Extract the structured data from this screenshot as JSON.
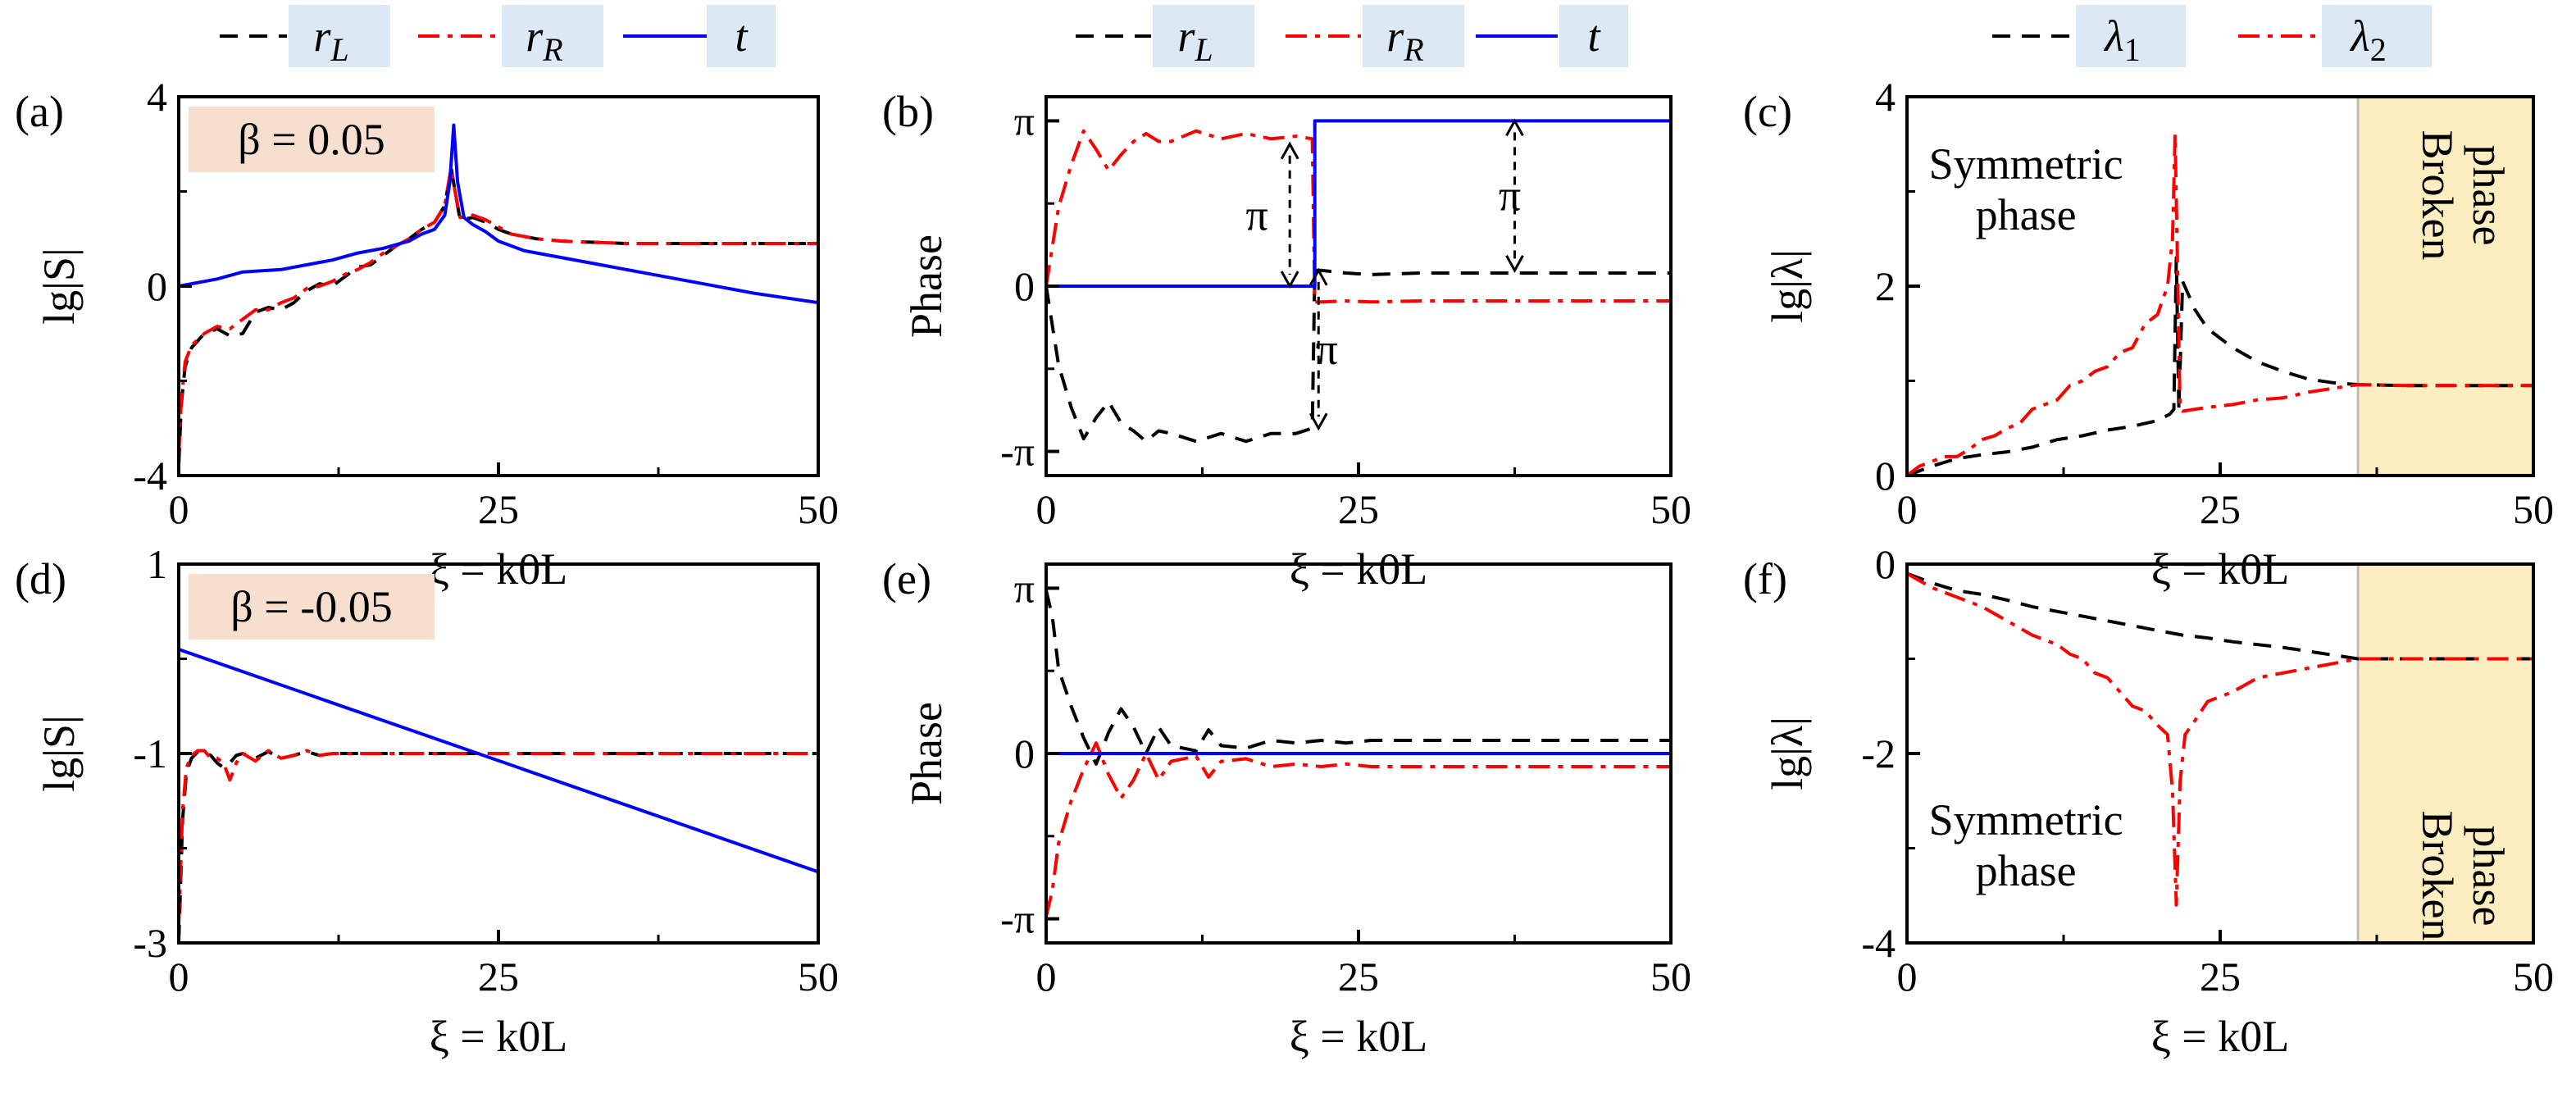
{
  "figure": {
    "legend_top_left": [
      {
        "name": "r",
        "sub": "L",
        "style": "dashed",
        "color": "#000000"
      },
      {
        "name": "r",
        "sub": "R",
        "style": "dashdot",
        "color": "#ff0000"
      },
      {
        "name": "t",
        "sub": "",
        "style": "solid",
        "color": "#0000ff"
      }
    ],
    "legend_top_right": [
      {
        "name": "λ",
        "sub": "1",
        "style": "dashed",
        "color": "#000000"
      },
      {
        "name": "λ",
        "sub": "2",
        "style": "dashdot",
        "color": "#ff0000"
      }
    ],
    "legend_box_color": "#dce9f5",
    "beta_box_color": "#f7dfcf",
    "broken_region_color": "#fdeec2"
  },
  "chart_data": [
    {
      "id": "a",
      "panel_label": "(a)",
      "type": "line",
      "xlabel": "ξ = k0L",
      "ylabel": "lg|S|",
      "xlim": [
        0,
        50
      ],
      "ylim": [
        -4,
        4
      ],
      "xticks": [
        "0",
        "25",
        "50"
      ],
      "yticks": [
        "-4",
        "0",
        "4"
      ],
      "annotations": {
        "beta": "β = 0.05"
      },
      "series": [
        {
          "name": "rL",
          "style": "dashed",
          "color": "#000000",
          "x": [
            0,
            0.2,
            0.5,
            1,
            2,
            3,
            4,
            5,
            6,
            7,
            8,
            9,
            10,
            11,
            12,
            13,
            14,
            15,
            16,
            17,
            18,
            19,
            20,
            20.8,
            21.3,
            21.6,
            22,
            23,
            24,
            25,
            26,
            28,
            30,
            35,
            40,
            45,
            50
          ],
          "y": [
            -3.8,
            -2.5,
            -1.7,
            -1.3,
            -1.0,
            -0.9,
            -1.05,
            -1.0,
            -0.55,
            -0.45,
            -0.5,
            -0.35,
            -0.1,
            0.05,
            0,
            0.2,
            0.4,
            0.45,
            0.65,
            0.85,
            1.0,
            1.2,
            1.35,
            1.7,
            2.5,
            2.0,
            1.4,
            1.45,
            1.35,
            1.2,
            1.1,
            1.0,
            0.95,
            0.9,
            0.9,
            0.9,
            0.9
          ]
        },
        {
          "name": "rR",
          "style": "dashdot",
          "color": "#ff0000",
          "x": [
            0,
            0.2,
            0.5,
            1,
            2,
            3,
            4,
            5,
            6,
            7,
            8,
            9,
            10,
            11,
            12,
            13,
            14,
            15,
            16,
            17,
            18,
            19,
            20,
            20.8,
            21.3,
            21.6,
            22,
            23,
            24,
            25,
            26,
            28,
            30,
            35,
            40,
            45,
            50
          ],
          "y": [
            -3.6,
            -2.4,
            -1.6,
            -1.25,
            -1.0,
            -0.85,
            -0.9,
            -0.7,
            -0.5,
            -0.5,
            -0.35,
            -0.25,
            -0.05,
            0.0,
            0.1,
            0.25,
            0.35,
            0.5,
            0.7,
            0.85,
            1.0,
            1.2,
            1.35,
            1.7,
            2.5,
            2.0,
            1.45,
            1.5,
            1.4,
            1.25,
            1.1,
            1.0,
            0.95,
            0.9,
            0.9,
            0.9,
            0.9
          ]
        },
        {
          "name": "t",
          "style": "solid",
          "color": "#0000ff",
          "x": [
            0,
            1,
            3,
            5,
            8,
            10,
            12,
            14,
            16,
            18,
            19,
            20,
            20.8,
            21.2,
            21.5,
            21.8,
            22.3,
            23,
            24,
            25,
            26,
            27,
            28,
            30,
            33,
            36,
            40,
            45,
            50
          ],
          "y": [
            0,
            0.05,
            0.15,
            0.3,
            0.35,
            0.45,
            0.55,
            0.7,
            0.8,
            0.95,
            1.1,
            1.2,
            1.5,
            2.2,
            3.4,
            2.2,
            1.45,
            1.3,
            1.15,
            0.95,
            0.85,
            0.75,
            0.7,
            0.6,
            0.45,
            0.3,
            0.1,
            -0.15,
            -0.35
          ]
        }
      ]
    },
    {
      "id": "b",
      "panel_label": "(b)",
      "type": "line",
      "xlabel": "ξ = k0L",
      "ylabel": "Phase",
      "xlim": [
        0,
        50
      ],
      "ylim": [
        -3.6,
        3.6
      ],
      "xticks": [
        "0",
        "25",
        "50"
      ],
      "yticks": [
        "-π",
        "0",
        "π"
      ],
      "annotations": {
        "pi_label": "π"
      },
      "series": [
        {
          "name": "rL",
          "style": "dashed",
          "color": "#000000",
          "x": [
            0,
            1,
            2,
            3,
            4,
            5,
            6,
            7,
            8,
            9,
            10,
            12,
            14,
            16,
            18,
            20,
            21.3,
            21.5,
            22,
            24,
            26,
            30,
            35,
            40,
            45,
            50
          ],
          "y": [
            0,
            -1.5,
            -2.3,
            -2.9,
            -2.5,
            -2.2,
            -2.6,
            -2.75,
            -2.95,
            -2.75,
            -2.8,
            -2.95,
            -2.8,
            -2.95,
            -2.8,
            -2.8,
            -2.7,
            0.3,
            0.3,
            0.25,
            0.22,
            0.25,
            0.25,
            0.25,
            0.25,
            0.25
          ]
        },
        {
          "name": "rR",
          "style": "dashdot",
          "color": "#ff0000",
          "x": [
            0,
            1,
            2,
            3,
            4,
            5,
            6,
            7,
            8,
            9,
            10,
            12,
            14,
            16,
            18,
            20,
            21.3,
            21.5,
            22,
            24,
            26,
            30,
            35,
            40,
            45,
            50
          ],
          "y": [
            0,
            1.5,
            2.3,
            2.95,
            2.6,
            2.2,
            2.5,
            2.75,
            2.9,
            2.75,
            2.75,
            2.95,
            2.8,
            2.9,
            2.8,
            2.85,
            2.8,
            -0.3,
            -0.3,
            -0.28,
            -0.3,
            -0.28,
            -0.28,
            -0.28,
            -0.28,
            -0.28
          ]
        },
        {
          "name": "t",
          "style": "solid",
          "color": "#0000ff",
          "x": [
            0,
            21.5,
            21.5,
            50
          ],
          "y": [
            0,
            0,
            3.1416,
            3.1416
          ]
        }
      ]
    },
    {
      "id": "c",
      "panel_label": "(c)",
      "type": "line",
      "xlabel": "ξ = k0L",
      "ylabel": "lg|λ|",
      "xlim": [
        0,
        50
      ],
      "ylim": [
        0,
        4
      ],
      "xticks": [
        "0",
        "25",
        "50"
      ],
      "yticks": [
        "0",
        "2",
        "4"
      ],
      "annotations": {
        "symmetric": [
          "Symmetric",
          "phase"
        ],
        "broken": [
          "Broken",
          "phase"
        ],
        "broken_start": 36
      },
      "series": [
        {
          "name": "λ1",
          "style": "dashed",
          "color": "#000000",
          "x": [
            0,
            2,
            4,
            6,
            8,
            10,
            12,
            14,
            16,
            18,
            20,
            21,
            21.3,
            21.5,
            21.7,
            22,
            23,
            24,
            25,
            26,
            28,
            30,
            32,
            34,
            36,
            40,
            45,
            50
          ],
          "y": [
            0,
            0.1,
            0.18,
            0.22,
            0.25,
            0.3,
            0.38,
            0.42,
            0.48,
            0.52,
            0.58,
            0.65,
            0.7,
            2.3,
            0.7,
            2.05,
            1.75,
            1.55,
            1.45,
            1.35,
            1.2,
            1.1,
            1.02,
            0.98,
            0.96,
            0.95,
            0.95,
            0.95
          ]
        },
        {
          "name": "λ2",
          "style": "dashdot",
          "color": "#ff0000",
          "x": [
            0,
            1,
            2,
            3,
            4,
            5,
            6,
            7,
            8,
            9,
            10,
            11,
            12,
            13,
            14,
            15,
            16,
            17,
            18,
            19,
            20,
            20.8,
            21.2,
            21.4,
            21.6,
            21.8,
            22,
            23,
            24,
            26,
            28,
            30,
            32,
            34,
            36,
            40,
            45,
            50
          ],
          "y": [
            0,
            0.1,
            0.15,
            0.2,
            0.2,
            0.28,
            0.38,
            0.42,
            0.5,
            0.55,
            0.7,
            0.75,
            0.8,
            0.95,
            1.0,
            1.1,
            1.15,
            1.3,
            1.35,
            1.6,
            1.7,
            2.0,
            2.5,
            3.6,
            2.2,
            0.7,
            0.68,
            0.7,
            0.72,
            0.75,
            0.8,
            0.82,
            0.88,
            0.92,
            0.96,
            0.95,
            0.95,
            0.95
          ]
        }
      ]
    },
    {
      "id": "d",
      "panel_label": "(d)",
      "type": "line",
      "xlabel": "ξ = k0L",
      "ylabel": "lg|S|",
      "xlim": [
        0,
        50
      ],
      "ylim": [
        -3,
        1
      ],
      "xticks": [
        "0",
        "25",
        "50"
      ],
      "yticks": [
        "-3",
        "-1",
        "1"
      ],
      "annotations": {
        "beta": "β = -0.05"
      },
      "series": [
        {
          "name": "rL",
          "style": "dashed",
          "color": "#000000",
          "x": [
            0,
            0.3,
            0.6,
            1,
            1.5,
            2,
            2.5,
            3,
            3.5,
            4,
            4.5,
            5,
            6,
            7,
            8,
            9,
            10,
            11,
            12,
            14,
            16,
            18,
            20,
            22,
            24,
            26,
            30,
            35,
            40,
            45,
            50
          ],
          "y": [
            -3,
            -1.7,
            -1.2,
            -1.05,
            -0.98,
            -0.98,
            -1.02,
            -1.1,
            -1.15,
            -1.1,
            -1.02,
            -1.0,
            -1.05,
            -0.98,
            -1.05,
            -1.02,
            -0.98,
            -1.02,
            -1.0,
            -1.0,
            -1.0,
            -1.0,
            -1.0,
            -1.0,
            -1.0,
            -1.0,
            -1.0,
            -1.0,
            -1.0,
            -1.0,
            -1.0
          ]
        },
        {
          "name": "rR",
          "style": "dashdot",
          "color": "#ff0000",
          "x": [
            0,
            0.3,
            0.6,
            1,
            1.5,
            2,
            2.5,
            3,
            3.5,
            4,
            4.5,
            5,
            6,
            7,
            8,
            9,
            10,
            11,
            12,
            14,
            16,
            18,
            20,
            22,
            24,
            26,
            30,
            35,
            40,
            45,
            50
          ],
          "y": [
            -2.8,
            -1.6,
            -1.15,
            -1.02,
            -0.97,
            -0.97,
            -1.05,
            -1.05,
            -1.1,
            -1.28,
            -1.1,
            -1.0,
            -1.08,
            -0.97,
            -1.05,
            -1.02,
            -0.97,
            -1.02,
            -1.0,
            -1.0,
            -1.0,
            -1.0,
            -1.0,
            -1.0,
            -1.0,
            -1.0,
            -1.0,
            -1.0,
            -1.0,
            -1.0,
            -1.0
          ]
        },
        {
          "name": "t",
          "style": "solid",
          "color": "#0000ff",
          "x": [
            0,
            50
          ],
          "y": [
            0.1,
            -2.25
          ]
        }
      ]
    },
    {
      "id": "e",
      "panel_label": "(e)",
      "type": "line",
      "xlabel": "ξ = k0L",
      "ylabel": "Phase",
      "xlim": [
        0,
        50
      ],
      "ylim": [
        -3.6,
        3.6
      ],
      "xticks": [
        "0",
        "25",
        "50"
      ],
      "yticks": [
        "-π",
        "0",
        "π"
      ],
      "series": [
        {
          "name": "rL",
          "style": "dashed",
          "color": "#000000",
          "x": [
            0,
            0.5,
            1,
            2,
            3,
            4,
            5,
            6,
            7,
            8,
            9,
            10,
            11,
            12,
            13,
            14,
            16,
            18,
            20,
            22,
            24,
            26,
            30,
            35,
            40,
            45,
            50
          ],
          "y": [
            3.1,
            2.6,
            1.6,
            0.9,
            0.3,
            -0.2,
            0.4,
            0.85,
            0.5,
            0.0,
            0.5,
            0.15,
            0.1,
            0.05,
            0.45,
            0.15,
            0.1,
            0.25,
            0.2,
            0.25,
            0.2,
            0.25,
            0.25,
            0.25,
            0.25,
            0.25,
            0.25
          ]
        },
        {
          "name": "rR",
          "style": "dashdot",
          "color": "#ff0000",
          "x": [
            0,
            0.5,
            1,
            2,
            3,
            4,
            5,
            6,
            7,
            8,
            9,
            10,
            11,
            12,
            13,
            14,
            16,
            18,
            20,
            22,
            24,
            26,
            30,
            35,
            40,
            45,
            50
          ],
          "y": [
            -3.1,
            -2.6,
            -1.7,
            -0.9,
            -0.3,
            0.2,
            -0.4,
            -0.85,
            -0.5,
            0.0,
            -0.5,
            -0.15,
            -0.1,
            -0.05,
            -0.45,
            -0.15,
            -0.1,
            -0.25,
            -0.2,
            -0.25,
            -0.2,
            -0.25,
            -0.25,
            -0.25,
            -0.25,
            -0.25,
            -0.25
          ]
        },
        {
          "name": "t",
          "style": "solid",
          "color": "#0000ff",
          "x": [
            0,
            50
          ],
          "y": [
            0,
            0
          ]
        }
      ]
    },
    {
      "id": "f",
      "panel_label": "(f)",
      "type": "line",
      "xlabel": "ξ = k0L",
      "ylabel": "lg|λ|",
      "xlim": [
        0,
        50
      ],
      "ylim": [
        -4,
        0
      ],
      "xticks": [
        "0",
        "25",
        "50"
      ],
      "yticks": [
        "-4",
        "-2",
        "0"
      ],
      "annotations": {
        "symmetric": [
          "Symmetric",
          "phase"
        ],
        "broken": [
          "Broken",
          "phase"
        ],
        "broken_start": 36
      },
      "series": [
        {
          "name": "λ1",
          "style": "dashed",
          "color": "#000000",
          "x": [
            0,
            2,
            4,
            6,
            8,
            10,
            12,
            14,
            16,
            18,
            20,
            22,
            24,
            26,
            28,
            30,
            32,
            34,
            36,
            40,
            45,
            50
          ],
          "y": [
            -0.1,
            -0.2,
            -0.28,
            -0.32,
            -0.38,
            -0.45,
            -0.5,
            -0.55,
            -0.6,
            -0.65,
            -0.7,
            -0.75,
            -0.78,
            -0.82,
            -0.85,
            -0.88,
            -0.92,
            -0.96,
            -1.0,
            -1.0,
            -1.0,
            -1.0
          ]
        },
        {
          "name": "λ2",
          "style": "dashdot",
          "color": "#ff0000",
          "x": [
            0,
            2,
            4,
            6,
            8,
            10,
            12,
            13,
            14,
            15,
            16,
            17,
            18,
            19,
            20,
            20.8,
            21.2,
            21.5,
            21.8,
            22.2,
            23,
            24,
            26,
            28,
            30,
            32,
            34,
            36,
            40,
            45,
            50
          ],
          "y": [
            -0.1,
            -0.25,
            -0.35,
            -0.45,
            -0.6,
            -0.75,
            -0.85,
            -0.95,
            -1.0,
            -1.15,
            -1.2,
            -1.35,
            -1.5,
            -1.55,
            -1.7,
            -1.8,
            -2.4,
            -3.6,
            -2.3,
            -1.8,
            -1.65,
            -1.45,
            -1.35,
            -1.2,
            -1.15,
            -1.1,
            -1.05,
            -1.0,
            -1.0,
            -1.0,
            -1.0
          ]
        }
      ]
    }
  ]
}
